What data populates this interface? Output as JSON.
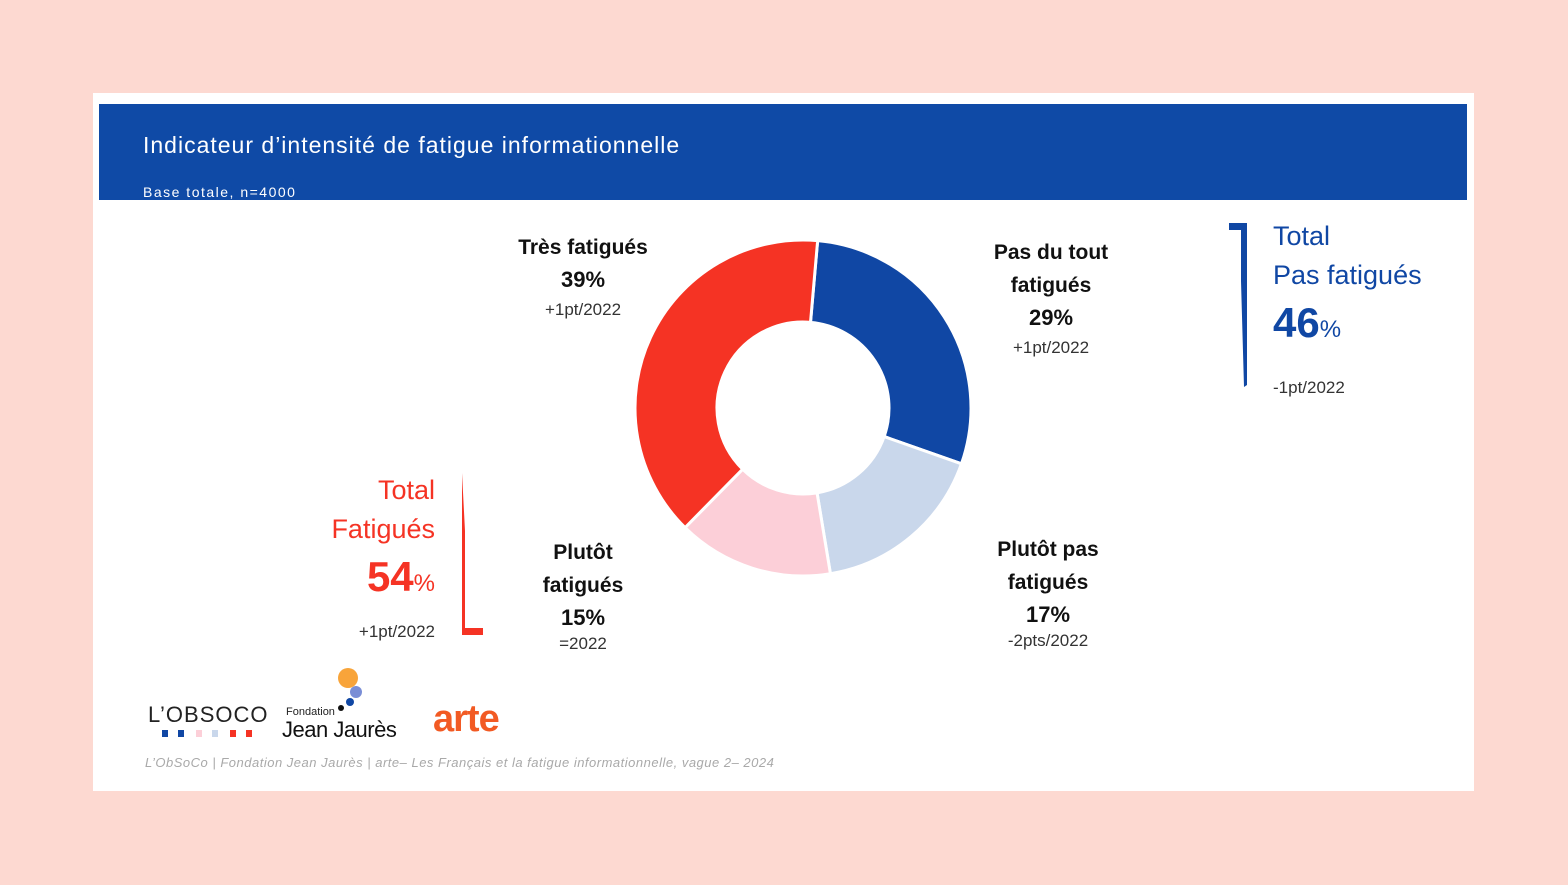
{
  "header": {
    "title": "Indicateur d’intensité de fatigue informationnelle",
    "subtitle": "Base totale, n=4000"
  },
  "colors": {
    "header_bg": "#0f4aa6",
    "red": "#f53324",
    "blue": "#1047a4",
    "pink": "#fccfd8",
    "light_blue": "#c9d7eb",
    "page_bg": "#fdd9d1"
  },
  "chart_data": {
    "type": "pie",
    "title": "Indicateur d’intensité de fatigue informationnelle",
    "categories": [
      "Pas du tout fatigués",
      "Plutôt pas fatigués",
      "Plutôt fatigués",
      "Très fatigués"
    ],
    "values": [
      29,
      17,
      15,
      39
    ],
    "unit": "%",
    "changes": [
      "+1pt/2022",
      "-2pts/2022",
      "=2022",
      "+1pt/2022"
    ]
  },
  "labels": {
    "tres": {
      "name1": "Très fatigués",
      "pct": "39%",
      "chg": "+1pt/2022"
    },
    "pasdutout": {
      "name1": "Pas du tout",
      "name2": "fatigués",
      "pct": "29%",
      "chg": "+1pt/2022"
    },
    "plutotpas": {
      "name1": "Plutôt pas",
      "name2": "fatigués",
      "pct": "17%",
      "chg": "-2pts/2022"
    },
    "plutot": {
      "name1": "Plutôt",
      "name2": "fatigués",
      "pct": "15%",
      "chg": "=2022"
    }
  },
  "totals": {
    "fatigues": {
      "line1": "Total",
      "line2": "Fatigués",
      "value": "54",
      "unit": "%",
      "chg": "+1pt/2022"
    },
    "pas_fatigues": {
      "line1": "Total",
      "line2": "Pas fatigués",
      "value": "46",
      "unit": "%",
      "chg": "-1pt/2022"
    }
  },
  "logos": {
    "obsoco": "L’OBSOCO",
    "jj_small": "Fondation",
    "jj_big": "Jean Jaurès",
    "arte": "arte"
  },
  "footer": "L’ObSoCo | Fondation Jean Jaurès | arte– Les Français et la fatigue informationnelle, vague 2– 2024"
}
